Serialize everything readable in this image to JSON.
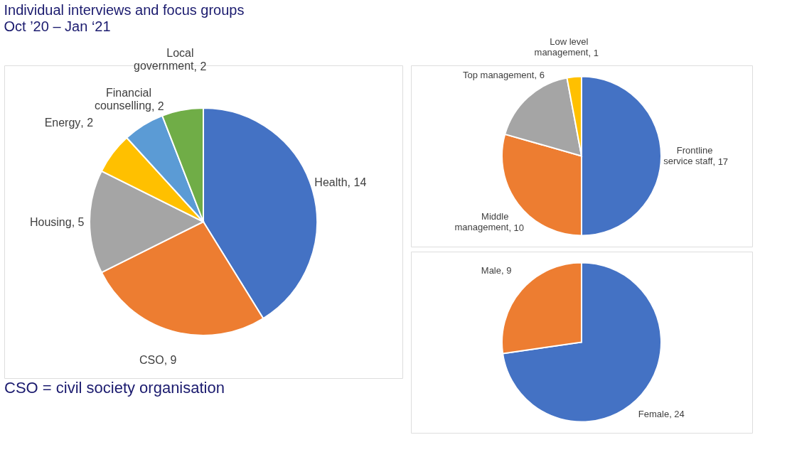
{
  "chart_data": [
    {
      "type": "pie",
      "title": "Individual interviews and focus groups",
      "subtitle": "Oct ’20 – Jan ‘21",
      "annotations": [
        "CSO = civil society organisation"
      ],
      "categories": [
        "Health",
        "CSO",
        "Housing",
        "Energy",
        "Financial counselling",
        "Local government"
      ],
      "values": [
        14,
        9,
        5,
        2,
        2,
        2
      ],
      "value_labels": [
        ", 14",
        ", 9",
        ", 5",
        ", 2",
        ", 2",
        ", 2"
      ],
      "colors": [
        "#4472c4",
        "#ed7d31",
        "#a5a5a5",
        "#ffc000",
        "#5b9bd5",
        "#70ad47"
      ]
    },
    {
      "type": "pie",
      "categories": [
        "Frontline service staff",
        "Middle management",
        "Top management",
        "Low level management"
      ],
      "values": [
        17,
        10,
        6,
        1
      ],
      "value_labels": [
        ", 17",
        ", 10",
        ", 6",
        ", 1"
      ],
      "colors": [
        "#4472c4",
        "#ed7d31",
        "#a5a5a5",
        "#ffc000"
      ]
    },
    {
      "type": "pie",
      "categories": [
        "Female",
        "Male"
      ],
      "values": [
        24,
        9
      ],
      "value_labels": [
        ", 24",
        ", 9"
      ],
      "colors": [
        "#4472c4",
        "#ed7d31"
      ]
    }
  ]
}
